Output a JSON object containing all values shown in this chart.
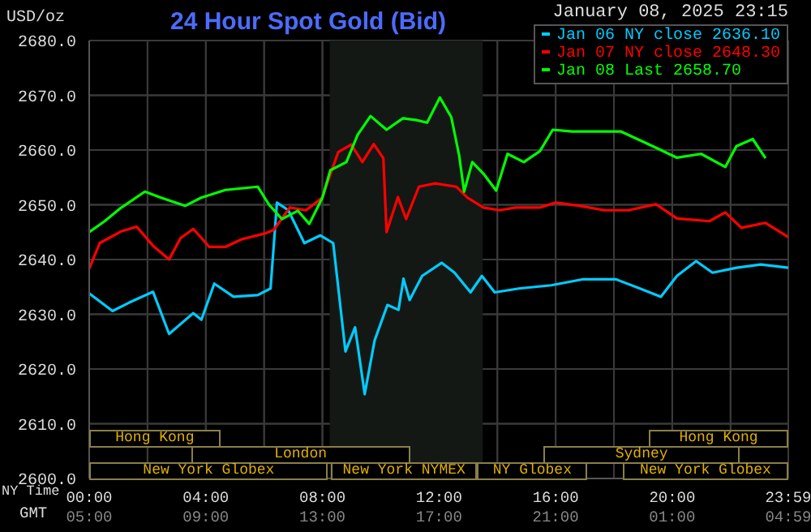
{
  "chart_data": {
    "type": "line",
    "title": "24 Hour Spot Gold (Bid)",
    "subtitle": "January 08, 2025 23:15",
    "ylabel": "USD/oz",
    "xlabel": "NY Time",
    "x2label": "GMT",
    "xlim": [
      0,
      23.98
    ],
    "xticks": [
      {
        "value": 0,
        "label": "00:00"
      },
      {
        "value": 2,
        "label": null
      },
      {
        "value": 4,
        "label": "04:00"
      },
      {
        "value": 6,
        "label": null
      },
      {
        "value": 8,
        "label": "08:00"
      },
      {
        "value": 10,
        "label": null
      },
      {
        "value": 12,
        "label": "12:00"
      },
      {
        "value": 14,
        "label": null
      },
      {
        "value": 16,
        "label": "16:00"
      },
      {
        "value": 18,
        "label": null
      },
      {
        "value": 20,
        "label": "20:00"
      },
      {
        "value": 22,
        "label": null
      },
      {
        "value": 23.98,
        "label": "23:59"
      }
    ],
    "x2lim": [
      "2025-01-08T05:00",
      "2025-01-09T04:59"
    ],
    "x2ticks": [
      {
        "value": "2025-01-08T05:00",
        "label": "05:00"
      },
      {
        "value": "2025-01-08T09:00",
        "label": "09:00"
      },
      {
        "value": "2025-01-08T13:00",
        "label": "13:00"
      },
      {
        "value": "2025-01-08T17:00",
        "label": "17:00"
      },
      {
        "value": "2025-01-08T21:00",
        "label": "21:00"
      },
      {
        "value": "2025-01-09T01:00",
        "label": "01:00"
      },
      {
        "value": "2025-01-09T04:59",
        "label": "04:59"
      }
    ],
    "ylim": [
      2600,
      2680
    ],
    "yticks": [
      {
        "value": 2600,
        "label": "2600.0"
      },
      {
        "value": 2610,
        "label": "2610.0"
      },
      {
        "value": 2620,
        "label": "2620.0"
      },
      {
        "value": 2630,
        "label": "2630.0"
      },
      {
        "value": 2640,
        "label": "2640.0"
      },
      {
        "value": 2650,
        "label": "2650.0"
      },
      {
        "value": 2660,
        "label": "2660.0"
      },
      {
        "value": 2670,
        "label": "2670.0"
      },
      {
        "value": 2680,
        "label": "2680.0"
      }
    ],
    "grid": true,
    "legend": "top right",
    "marker": "none",
    "line_style": "solid",
    "bands": [
      {
        "axis": "x",
        "from": 8.25,
        "to": 13.5,
        "color": "#141814"
      }
    ],
    "annotations": [
      "Hong Kong",
      "London",
      "New York Globex",
      "New York NYMEX",
      "NY Globex",
      "Hong Kong",
      "Sydney",
      "New York Globex"
    ],
    "series": [
      {
        "name": "Jan 06 NY close 2636.10",
        "color": "#00ccff",
        "x": [
          0,
          0.8,
          1.36,
          2.19,
          2.74,
          3.57,
          3.85,
          4.29,
          4.95,
          5.78,
          6.22,
          6.44,
          6.83,
          7.38,
          7.93,
          8.37,
          8.79,
          9.12,
          9.45,
          9.79,
          10.23,
          10.61,
          10.78,
          10.99,
          11.42,
          12.09,
          12.53,
          13.08,
          13.47,
          13.91,
          14.74,
          15.85,
          16.95,
          18.06,
          18.89,
          19.61,
          20.16,
          20.82,
          21.38,
          22.21,
          23.04,
          23.98
        ],
        "values": [
          2633.8,
          2630.6,
          2632.1,
          2634.1,
          2626.4,
          2630.2,
          2629,
          2635.6,
          2633.2,
          2633.5,
          2634.7,
          2650.4,
          2649,
          2643,
          2644.4,
          2643,
          2623.2,
          2627.6,
          2615.4,
          2625.2,
          2631.7,
          2630.8,
          2636.5,
          2632.6,
          2637,
          2639.4,
          2637.6,
          2634,
          2637,
          2634,
          2634.7,
          2635.3,
          2636.4,
          2636.4,
          2634.7,
          2633.2,
          2637,
          2639.7,
          2637.6,
          2638.5,
          2639.1,
          2638.5
        ]
      },
      {
        "name": "Jan 07 NY close 2648.30",
        "color": "#ff0000",
        "x": [
          0,
          0.36,
          1.08,
          1.63,
          2.19,
          2.74,
          3.13,
          3.57,
          4.12,
          4.67,
          5.23,
          6.06,
          6.33,
          6.88,
          7.44,
          7.99,
          8.54,
          8.99,
          9.37,
          9.76,
          10.09,
          10.2,
          10.59,
          10.87,
          11.31,
          11.87,
          12.59,
          12.97,
          13.52,
          14.08,
          14.63,
          15.46,
          16.01,
          16.84,
          17.67,
          18.5,
          19.44,
          20.16,
          21.27,
          21.82,
          22.37,
          23.2,
          23.98
        ],
        "values": [
          2638.3,
          2643,
          2645.1,
          2646,
          2642.5,
          2640,
          2643.9,
          2645.6,
          2642.3,
          2642.3,
          2643.7,
          2644.8,
          2645.4,
          2649.5,
          2649,
          2651.3,
          2659.6,
          2661,
          2657.8,
          2661.1,
          2658.5,
          2645,
          2651.4,
          2647.4,
          2653.3,
          2653.9,
          2653.3,
          2651.3,
          2649.5,
          2649,
          2649.5,
          2649.5,
          2650.4,
          2649.8,
          2649,
          2649,
          2650.1,
          2647.5,
          2647,
          2648.6,
          2645.8,
          2646.7,
          2644.1
        ]
      },
      {
        "name": "Jan 08 Last 2658.70",
        "color": "#00ff00",
        "x": [
          0,
          0.53,
          1.08,
          1.91,
          2.46,
          3.29,
          3.84,
          4.67,
          5.78,
          6.17,
          6.61,
          7.16,
          7.55,
          8,
          8.27,
          8.82,
          9.21,
          9.65,
          10.2,
          10.76,
          11.2,
          11.59,
          12.03,
          12.42,
          12.69,
          12.86,
          13.14,
          13.52,
          13.96,
          14.35,
          14.91,
          15.46,
          15.9,
          16.56,
          18.23,
          19.33,
          20.16,
          20.99,
          21.82,
          22.2,
          22.76,
          23.2
        ],
        "values": [
          2645,
          2647,
          2649.4,
          2652.4,
          2651.3,
          2649.8,
          2651.3,
          2652.7,
          2653.3,
          2650,
          2647.4,
          2648.9,
          2646.5,
          2651.3,
          2656.3,
          2657.8,
          2662.8,
          2666.2,
          2663.7,
          2665.8,
          2665.5,
          2665,
          2669.6,
          2666,
          2659,
          2652.4,
          2657.8,
          2655.7,
          2652.6,
          2659.3,
          2657.8,
          2659.8,
          2663.7,
          2663.4,
          2663.4,
          2660.7,
          2658.6,
          2659.3,
          2656.9,
          2660.7,
          2662,
          2658.5
        ]
      }
    ]
  }
}
